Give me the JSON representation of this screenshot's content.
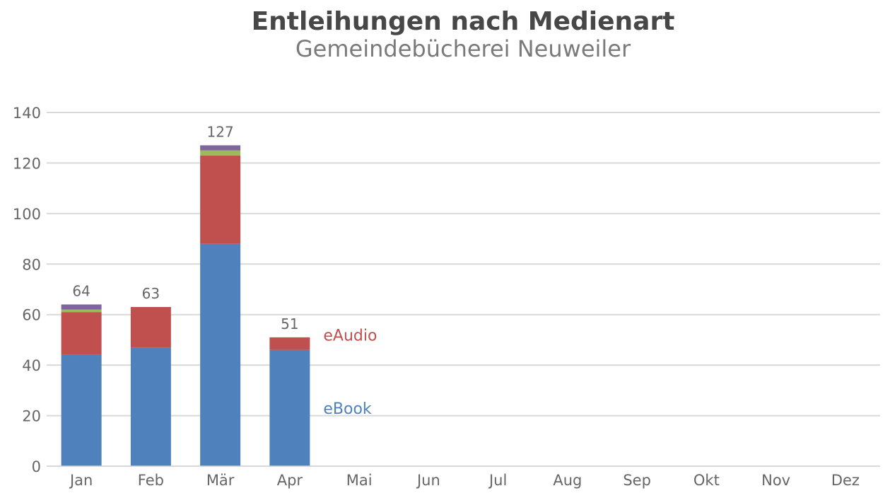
{
  "title": "Entleihungen nach Medienart",
  "subtitle": "Gemeindebücherei Neuweiler",
  "chart_data": {
    "type": "bar",
    "stacked": true,
    "title": "Entleihungen nach Medienart",
    "subtitle": "Gemeindebücherei Neuweiler",
    "categories": [
      "Jan",
      "Feb",
      "Mär",
      "Apr",
      "Mai",
      "Jun",
      "Jul",
      "Aug",
      "Sep",
      "Okt",
      "Nov",
      "Dez"
    ],
    "series": [
      {
        "name": "eBook",
        "color": "#4f81bd",
        "values": [
          44,
          47,
          88,
          46,
          null,
          null,
          null,
          null,
          null,
          null,
          null,
          null
        ]
      },
      {
        "name": "eAudio",
        "color": "#c0504d",
        "values": [
          17,
          16,
          35,
          5,
          null,
          null,
          null,
          null,
          null,
          null,
          null,
          null
        ]
      },
      {
        "color": "#9bbb59",
        "values": [
          1,
          0,
          2,
          0,
          null,
          null,
          null,
          null,
          null,
          null,
          null,
          null
        ]
      },
      {
        "color": "#8064a2",
        "values": [
          2,
          0,
          2,
          0,
          null,
          null,
          null,
          null,
          null,
          null,
          null,
          null
        ]
      }
    ],
    "totals": [
      64,
      63,
      127,
      51,
      null,
      null,
      null,
      null,
      null,
      null,
      null,
      null
    ],
    "yticks": [
      0,
      20,
      40,
      60,
      80,
      100,
      120,
      140
    ],
    "ylim": [
      0,
      140
    ],
    "xlabel": "",
    "ylabel": "",
    "grid": true,
    "legend": "inline labels next to last bar"
  }
}
